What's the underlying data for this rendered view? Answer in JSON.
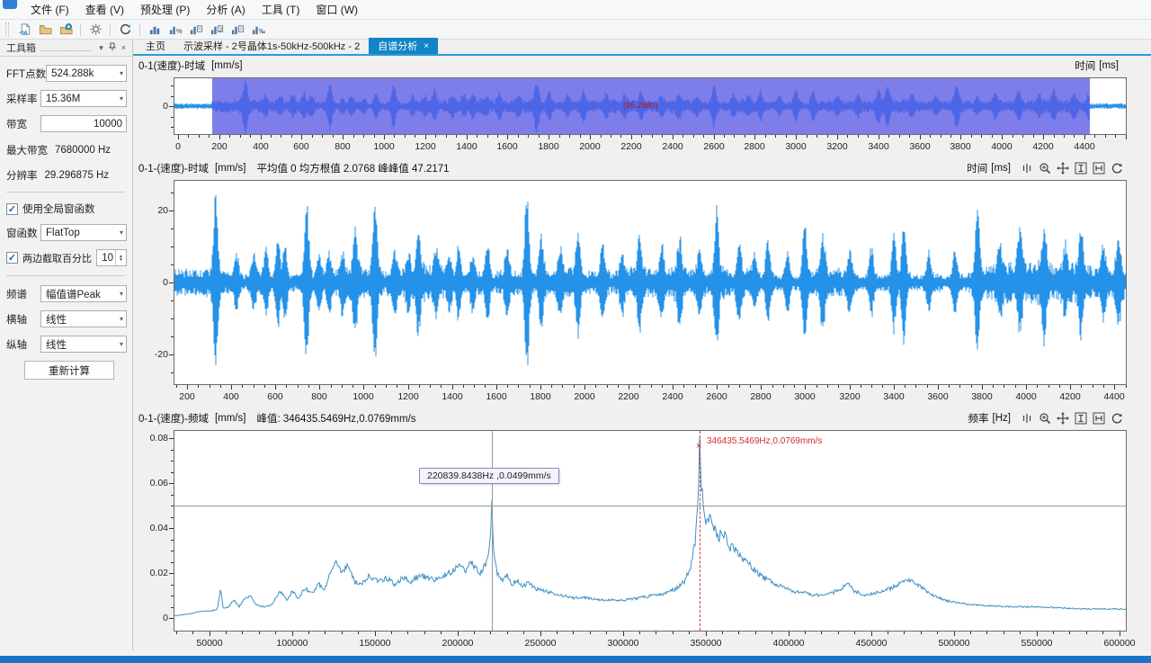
{
  "menu": {
    "items": [
      "文件 (F)",
      "查看 (V)",
      "预处理 (P)",
      "分析 (A)",
      "工具 (T)",
      "窗口 (W)"
    ]
  },
  "toolbar": {
    "icons": [
      "new-analysis",
      "open-file",
      "import-data",
      "settings",
      "refresh",
      "stat-chart-1",
      "stat-chart-2",
      "stat-chart-3",
      "stat-chart-4",
      "stat-chart-5",
      "stat-chart-6"
    ]
  },
  "tabs": [
    {
      "label": "主页",
      "active": false
    },
    {
      "label": "示波采样 - 2号晶体1s-50kHz-500kHz - 2",
      "active": false
    },
    {
      "label": "自谱分析",
      "active": true,
      "close_glyph": "×"
    }
  ],
  "toolbox": {
    "title": "工具箱",
    "fft_label": "FFT点数",
    "fft_value": "524.288k",
    "sr_label": "采样率",
    "sr_value": "15.36M",
    "bw_label": "带宽",
    "bw_value": "10000",
    "maxbw_label": "最大带宽",
    "maxbw_value": "7680000 Hz",
    "res_label": "分辨率",
    "res_value": "29.296875 Hz",
    "global_window_label": "使用全局窗函数",
    "window_label": "窗函数",
    "window_value": "FlatTop",
    "trim_label": "两边截取百分比",
    "trim_value": "10",
    "spectrum_label": "频谱",
    "spectrum_value": "幅值谱Peak",
    "xaxis_label": "横轴",
    "xaxis_value": "线性",
    "yaxis_label": "纵轴",
    "yaxis_value": "线性",
    "recalc_label": "重新计算"
  },
  "charts": {
    "top": {
      "title": "0-1(速度)-时域",
      "unit": "[mm/s]",
      "axis_name": "时间",
      "axis_unit": "[ms]",
      "selection_text": "(96.2880)"
    },
    "mid": {
      "title": "0-1-(速度)-时域",
      "unit": "[mm/s]",
      "stats": "平均值 0 均方根值 2.0768 峰峰值 47.2171",
      "axis_name": "时间",
      "axis_unit": "[ms]"
    },
    "bottom": {
      "title": "0-1-(速度)-频域",
      "unit": "[mm/s]",
      "peak_text": "峰值:  346435.5469Hz,0.0769mm/s",
      "axis_name": "频率",
      "axis_unit": "[Hz]",
      "tooltip_text": "220839.8438Hz ,0.0499mm/s",
      "marker_text": "346435.5469Hz,0.0769mm/s",
      "marker_glyph": "×"
    }
  },
  "chart_data": {
    "top_wave": {
      "type": "line",
      "x_label": "时间 [ms]",
      "y_label": "mm/s",
      "x_range_ms": [
        -17,
        4601
      ],
      "x_ticks": [
        0,
        200,
        400,
        600,
        800,
        1000,
        1200,
        1400,
        1600,
        1800,
        2000,
        2200,
        2400,
        2600,
        2800,
        3000,
        3200,
        3400,
        3600,
        3800,
        4000,
        4200,
        4400
      ],
      "y_ticks": [
        0
      ],
      "selection_ms": [
        165.6,
        4426
      ]
    },
    "mid_wave": {
      "type": "line",
      "x_label": "时间 [ms]",
      "y_label": "mm/s",
      "x_range_ms": [
        143,
        4452
      ],
      "x_ticks": [
        200,
        400,
        600,
        800,
        1000,
        1200,
        1400,
        1600,
        1800,
        2000,
        2200,
        2400,
        2600,
        2800,
        3000,
        3200,
        3400,
        3600,
        3800,
        4000,
        4200,
        4400
      ],
      "y_ticks": [
        -20,
        0,
        20
      ],
      "mean": 0,
      "rms": 2.0768,
      "peak_to_peak": 47.2171,
      "spikes": [
        [
          330,
          23
        ],
        [
          425,
          7
        ],
        [
          500,
          6
        ],
        [
          560,
          8
        ],
        [
          610,
          11
        ],
        [
          645,
          9
        ],
        [
          740,
          22
        ],
        [
          800,
          6
        ],
        [
          845,
          7
        ],
        [
          905,
          6
        ],
        [
          960,
          12
        ],
        [
          1050,
          21
        ],
        [
          1140,
          7
        ],
        [
          1200,
          6
        ],
        [
          1245,
          11
        ],
        [
          1330,
          7
        ],
        [
          1390,
          6
        ],
        [
          1430,
          9
        ],
        [
          1495,
          6
        ],
        [
          1560,
          10
        ],
        [
          1650,
          7
        ],
        [
          1740,
          23
        ],
        [
          1805,
          11
        ],
        [
          1890,
          7
        ],
        [
          1970,
          12
        ],
        [
          2080,
          9
        ],
        [
          2170,
          7
        ],
        [
          2250,
          11
        ],
        [
          2350,
          7
        ],
        [
          2430,
          9
        ],
        [
          2520,
          7
        ],
        [
          2600,
          17
        ],
        [
          2700,
          8
        ],
        [
          2770,
          6
        ],
        [
          2830,
          11
        ],
        [
          2920,
          7
        ],
        [
          3000,
          15
        ],
        [
          3080,
          12
        ],
        [
          3200,
          7
        ],
        [
          3300,
          8
        ],
        [
          3400,
          13
        ],
        [
          3445,
          16
        ],
        [
          3560,
          7
        ],
        [
          3680,
          8
        ],
        [
          3780,
          19
        ],
        [
          3880,
          7
        ],
        [
          3970,
          11
        ],
        [
          4080,
          12
        ],
        [
          4180,
          7
        ],
        [
          4250,
          11
        ],
        [
          4350,
          8
        ],
        [
          4420,
          9
        ]
      ]
    },
    "spectrum": {
      "type": "line",
      "x_label": "频率 [Hz]",
      "y_label": "mm/s",
      "x_range_hz": [
        29000,
        604000
      ],
      "x_ticks": [
        50000,
        100000,
        150000,
        200000,
        250000,
        300000,
        350000,
        400000,
        450000,
        500000,
        550000,
        600000
      ],
      "y_ticks": [
        0,
        0.02,
        0.04,
        0.06,
        0.08
      ],
      "y_range": [
        0,
        0.084
      ],
      "peak": {
        "hz": 346435.5469,
        "mms": 0.0769
      },
      "cursor": {
        "hz": 220839.8438,
        "mms": 0.0499
      },
      "points": [
        [
          29000,
          0.001
        ],
        [
          40000,
          0.002
        ],
        [
          44000,
          0.003
        ],
        [
          50000,
          0.003
        ],
        [
          55000,
          0.004
        ],
        [
          57000,
          0.013
        ],
        [
          58500,
          0.004
        ],
        [
          62000,
          0.005
        ],
        [
          65000,
          0.008
        ],
        [
          68000,
          0.005
        ],
        [
          72000,
          0.009
        ],
        [
          75000,
          0.01
        ],
        [
          78000,
          0.006
        ],
        [
          83000,
          0.005
        ],
        [
          88000,
          0.006
        ],
        [
          93000,
          0.012
        ],
        [
          97000,
          0.008
        ],
        [
          100000,
          0.012
        ],
        [
          104000,
          0.009
        ],
        [
          108000,
          0.013
        ],
        [
          112000,
          0.011
        ],
        [
          116000,
          0.015
        ],
        [
          120000,
          0.013
        ],
        [
          124000,
          0.022
        ],
        [
          127000,
          0.026
        ],
        [
          130000,
          0.02
        ],
        [
          134000,
          0.024
        ],
        [
          138000,
          0.016
        ],
        [
          142000,
          0.015
        ],
        [
          147000,
          0.019
        ],
        [
          152000,
          0.016
        ],
        [
          157000,
          0.018
        ],
        [
          162000,
          0.015
        ],
        [
          167000,
          0.018
        ],
        [
          172000,
          0.016
        ],
        [
          177000,
          0.019
        ],
        [
          182000,
          0.018
        ],
        [
          187000,
          0.017
        ],
        [
          192000,
          0.019
        ],
        [
          197000,
          0.021
        ],
        [
          202000,
          0.024
        ],
        [
          205000,
          0.02
        ],
        [
          208000,
          0.026
        ],
        [
          211000,
          0.022
        ],
        [
          214000,
          0.02
        ],
        [
          217000,
          0.024
        ],
        [
          219500,
          0.03
        ],
        [
          220839,
          0.0499
        ],
        [
          222000,
          0.028
        ],
        [
          224000,
          0.02
        ],
        [
          227000,
          0.017
        ],
        [
          230000,
          0.019
        ],
        [
          233000,
          0.015
        ],
        [
          236000,
          0.017
        ],
        [
          239000,
          0.014
        ],
        [
          243000,
          0.016
        ],
        [
          247000,
          0.013
        ],
        [
          252000,
          0.012
        ],
        [
          258000,
          0.011
        ],
        [
          264000,
          0.01
        ],
        [
          270000,
          0.009
        ],
        [
          278000,
          0.009
        ],
        [
          286000,
          0.008
        ],
        [
          294000,
          0.008
        ],
        [
          302000,
          0.008
        ],
        [
          310000,
          0.009
        ],
        [
          318000,
          0.01
        ],
        [
          326000,
          0.011
        ],
        [
          332000,
          0.013
        ],
        [
          337000,
          0.016
        ],
        [
          341000,
          0.022
        ],
        [
          344000,
          0.035
        ],
        [
          345500,
          0.055
        ],
        [
          346435,
          0.0769
        ],
        [
          347500,
          0.06
        ],
        [
          349000,
          0.048
        ],
        [
          351000,
          0.042
        ],
        [
          353000,
          0.046
        ],
        [
          355000,
          0.04
        ],
        [
          358000,
          0.036
        ],
        [
          361000,
          0.038
        ],
        [
          364000,
          0.032
        ],
        [
          368000,
          0.03
        ],
        [
          372000,
          0.027
        ],
        [
          376000,
          0.024
        ],
        [
          380000,
          0.021
        ],
        [
          385000,
          0.018
        ],
        [
          390000,
          0.016
        ],
        [
          396000,
          0.014
        ],
        [
          402000,
          0.012
        ],
        [
          410000,
          0.011
        ],
        [
          418000,
          0.01
        ],
        [
          426000,
          0.011
        ],
        [
          432000,
          0.013
        ],
        [
          436000,
          0.015
        ],
        [
          440000,
          0.012
        ],
        [
          446000,
          0.01
        ],
        [
          452000,
          0.011
        ],
        [
          458000,
          0.012
        ],
        [
          464000,
          0.014
        ],
        [
          470000,
          0.016
        ],
        [
          474000,
          0.017
        ],
        [
          478000,
          0.015
        ],
        [
          483000,
          0.012
        ],
        [
          488000,
          0.01
        ],
        [
          494000,
          0.008
        ],
        [
          500000,
          0.007
        ],
        [
          510000,
          0.006
        ],
        [
          520000,
          0.0055
        ],
        [
          535000,
          0.005
        ],
        [
          550000,
          0.005
        ],
        [
          565000,
          0.0045
        ],
        [
          580000,
          0.004
        ],
        [
          600000,
          0.004
        ]
      ]
    }
  },
  "colors": {
    "wave": "#2492e8",
    "spectrum_line": "#3d8fc4",
    "selection": "rgba(90,90,230,0.78)",
    "active_tab": "#1385c6",
    "statusbar": "#1b74c8",
    "annotation_red": "#cf3030"
  }
}
